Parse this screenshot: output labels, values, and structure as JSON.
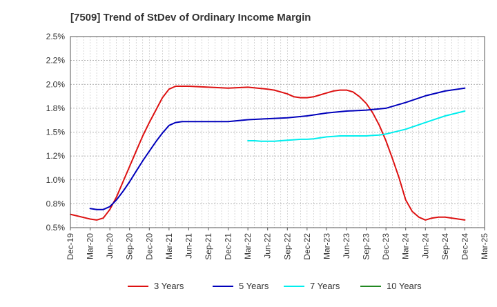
{
  "chart_data": {
    "type": "line",
    "title": "[7509]  Trend of StDev of Ordinary Income Margin",
    "xlabel": "",
    "ylabel": "",
    "x_ticks": [
      "Dec-19",
      "Mar-20",
      "Jun-20",
      "Sep-20",
      "Dec-20",
      "Mar-21",
      "Jun-21",
      "Sep-21",
      "Dec-21",
      "Mar-22",
      "Jun-22",
      "Sep-22",
      "Dec-22",
      "Mar-23",
      "Jun-23",
      "Sep-23",
      "Dec-23",
      "Mar-24",
      "Jun-24",
      "Sep-24",
      "Dec-24",
      "Mar-25"
    ],
    "y_ticks": [
      "0.5%",
      "0.8%",
      "1.0%",
      "1.2%",
      "1.5%",
      "1.8%",
      "2.0%",
      "2.2%",
      "2.5%"
    ],
    "ylim": [
      0.5,
      2.5
    ],
    "grid": true,
    "legend_position": "bottom",
    "series": [
      {
        "name": "3 Years",
        "color": "#dd1111",
        "x": [
          "Dec-19",
          "Mar-20",
          "Apr-20",
          "May-20",
          "Jun-20",
          "Jul-20",
          "Aug-20",
          "Sep-20",
          "Oct-20",
          "Nov-20",
          "Dec-20",
          "Jan-21",
          "Feb-21",
          "Mar-21",
          "Apr-21",
          "May-21",
          "Jun-21",
          "Sep-21",
          "Dec-21",
          "Mar-22",
          "Jun-22",
          "Jul-22",
          "Aug-22",
          "Sep-22",
          "Oct-22",
          "Nov-22",
          "Dec-22",
          "Jan-23",
          "Feb-23",
          "Mar-23",
          "Apr-23",
          "May-23",
          "Jun-23",
          "Jul-23",
          "Aug-23",
          "Sep-23",
          "Oct-23",
          "Nov-23",
          "Dec-23",
          "Jan-24",
          "Feb-24",
          "Mar-24",
          "Apr-24",
          "May-24",
          "Jun-24",
          "Jul-24",
          "Aug-24",
          "Sep-24",
          "Oct-24",
          "Nov-24",
          "Dec-24"
        ],
        "values": [
          0.64,
          0.59,
          0.58,
          0.6,
          0.69,
          0.82,
          0.98,
          1.14,
          1.3,
          1.46,
          1.6,
          1.73,
          1.86,
          1.95,
          1.98,
          1.98,
          1.98,
          1.97,
          1.96,
          1.97,
          1.95,
          1.94,
          1.92,
          1.9,
          1.87,
          1.86,
          1.86,
          1.87,
          1.89,
          1.91,
          1.93,
          1.94,
          1.94,
          1.92,
          1.87,
          1.8,
          1.7,
          1.57,
          1.41,
          1.22,
          1.02,
          0.79,
          0.67,
          0.61,
          0.58,
          0.6,
          0.61,
          0.61,
          0.6,
          0.59,
          0.58
        ]
      },
      {
        "name": "5 Years",
        "color": "#0000bb",
        "x": [
          "Dec-19",
          "Jan-20",
          "Feb-20",
          "Mar-20",
          "Apr-20",
          "May-20",
          "Jun-20",
          "Jul-20",
          "Aug-20",
          "Sep-20",
          "Oct-20",
          "Nov-20",
          "Dec-20",
          "Jan-21",
          "Feb-21",
          "Mar-21",
          "Apr-21",
          "May-21",
          "Jun-21",
          "Sep-21",
          "Dec-21",
          "Mar-22",
          "Jun-22",
          "Sep-22",
          "Dec-22",
          "Mar-23",
          "Jun-23",
          "Sep-23",
          "Dec-23",
          "Mar-24",
          "Jun-24",
          "Sep-24",
          "Dec-24"
        ],
        "values": [
          null,
          null,
          null,
          0.7,
          0.69,
          0.69,
          0.72,
          0.79,
          0.88,
          0.98,
          1.09,
          1.2,
          1.3,
          1.4,
          1.49,
          1.57,
          1.6,
          1.61,
          1.61,
          1.61,
          1.61,
          1.63,
          1.64,
          1.65,
          1.67,
          1.7,
          1.72,
          1.73,
          1.75,
          1.81,
          1.88,
          1.93,
          1.96
        ]
      },
      {
        "name": "7 Years",
        "color": "#00eeee",
        "x": [
          "Mar-22",
          "Apr-22",
          "May-22",
          "Jun-22",
          "Jul-22",
          "Aug-22",
          "Sep-22",
          "Oct-22",
          "Nov-22",
          "Dec-22",
          "Jan-23",
          "Feb-23",
          "Mar-23",
          "Apr-23",
          "May-23",
          "Jun-23",
          "Jul-23",
          "Aug-23",
          "Sep-23",
          "Oct-23",
          "Nov-23",
          "Dec-23",
          "Mar-24",
          "Jun-24",
          "Sep-24",
          "Dec-24"
        ],
        "values": [
          1.41,
          1.41,
          1.405,
          1.405,
          1.405,
          1.41,
          1.415,
          1.42,
          1.425,
          1.425,
          1.43,
          1.44,
          1.45,
          1.455,
          1.46,
          1.46,
          1.46,
          1.46,
          1.46,
          1.465,
          1.47,
          1.48,
          1.53,
          1.6,
          1.67,
          1.72
        ]
      },
      {
        "name": "10 Years",
        "color": "#228822",
        "x": [],
        "values": []
      }
    ]
  }
}
